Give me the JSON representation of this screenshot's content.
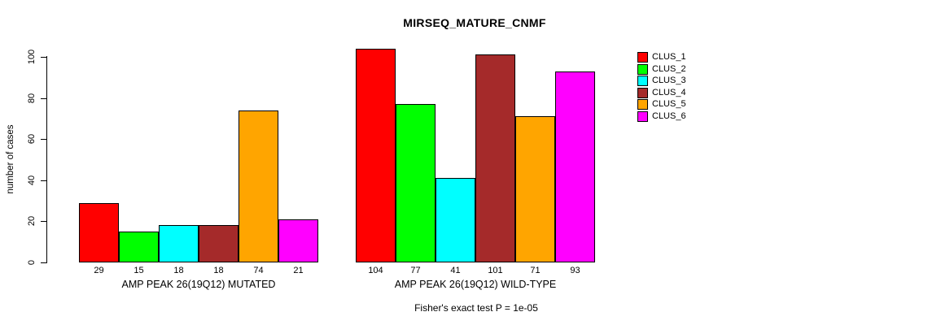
{
  "chart_data": {
    "type": "bar",
    "title": "MIRSEQ_MATURE_CNMF",
    "ylabel": "number of cases",
    "ylim": [
      0,
      100
    ],
    "yticks": [
      0,
      20,
      40,
      60,
      80,
      100
    ],
    "grid": false,
    "legend_position": "right-outside",
    "clusters": [
      {
        "name": "CLUS_1",
        "color": "#FF0000"
      },
      {
        "name": "CLUS_2",
        "color": "#00FF00"
      },
      {
        "name": "CLUS_3",
        "color": "#00FFFF"
      },
      {
        "name": "CLUS_4",
        "color": "#A52A2A"
      },
      {
        "name": "CLUS_5",
        "color": "#FFA500"
      },
      {
        "name": "CLUS_6",
        "color": "#FF00FF"
      }
    ],
    "groups": [
      {
        "label": "AMP PEAK 26(19Q12) MUTATED",
        "values": [
          29,
          15,
          18,
          18,
          74,
          21
        ]
      },
      {
        "label": "AMP PEAK 26(19Q12) WILD-TYPE",
        "values": [
          104,
          77,
          41,
          101,
          71,
          93
        ]
      }
    ],
    "annotation": "Fisher's exact test P = 1e-05"
  }
}
